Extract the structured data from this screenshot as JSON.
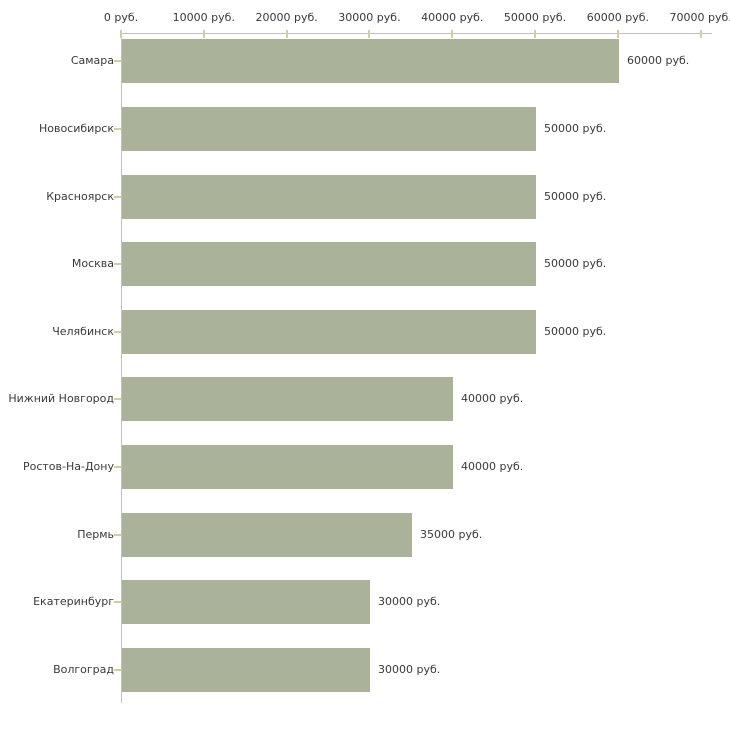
{
  "chart_data": {
    "type": "bar",
    "orientation": "horizontal",
    "title": "",
    "xlabel": "",
    "ylabel": "",
    "unit": "руб.",
    "categories": [
      "Самара",
      "Новосибирск",
      "Красноярск",
      "Москва",
      "Челябинск",
      "Нижний Новгород",
      "Ростов-На-Дону",
      "Пермь",
      "Екатеринбург",
      "Волгоград"
    ],
    "values": [
      60000,
      50000,
      50000,
      50000,
      50000,
      40000,
      40000,
      35000,
      30000,
      30000
    ],
    "value_labels": [
      "60000 руб.",
      "50000 руб.",
      "50000 руб.",
      "50000 руб.",
      "50000 руб.",
      "40000 руб.",
      "40000 руб.",
      "35000 руб.",
      "30000 руб.",
      "30000 руб."
    ],
    "x_ticks": [
      0,
      10000,
      20000,
      30000,
      40000,
      50000,
      60000,
      70000
    ],
    "x_tick_labels": [
      "0 руб.",
      "10000 руб.",
      "20000 руб.",
      "30000 руб.",
      "40000 руб.",
      "50000 руб.",
      "60000 руб.",
      "70000 руб."
    ],
    "xlim": [
      0,
      71400
    ],
    "grid": false,
    "legend": false,
    "colors": {
      "bar": "#abb29a",
      "axis_line": "#c0c0c0",
      "tick_mark": "#cfcf9f",
      "text": "#3a3a3a",
      "background": "#ffffff"
    }
  }
}
